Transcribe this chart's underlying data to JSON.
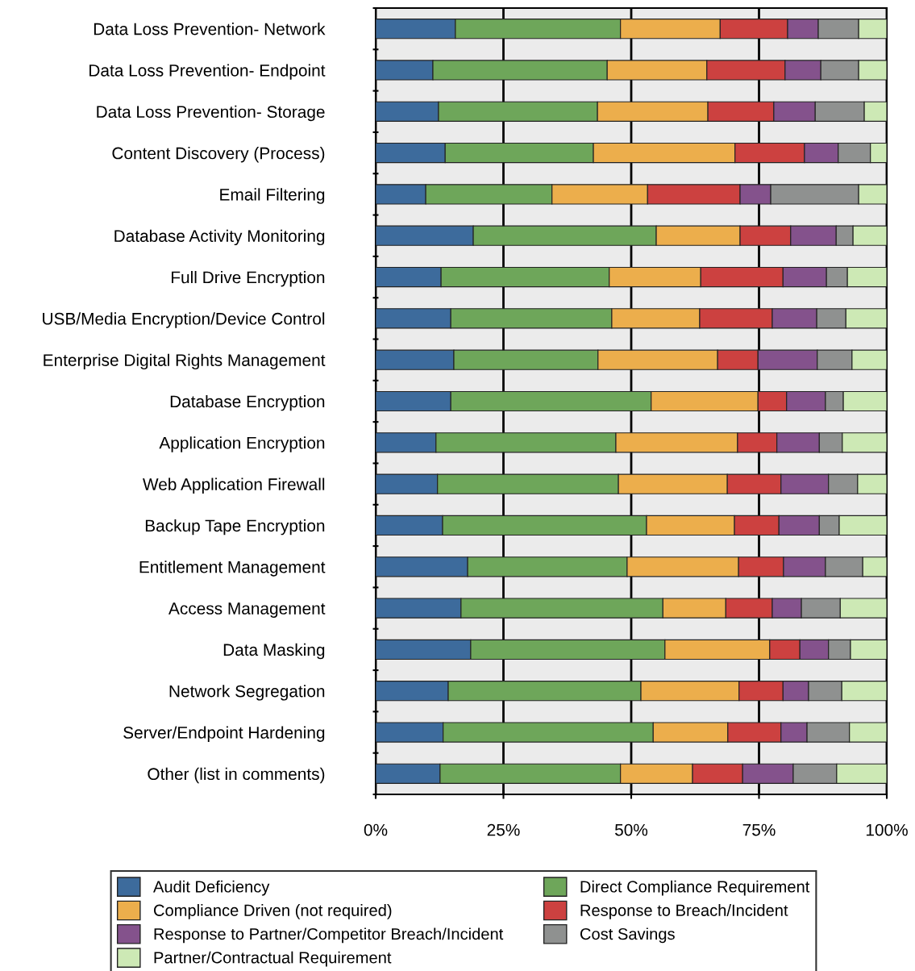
{
  "chart_data": {
    "type": "bar",
    "orientation": "horizontal",
    "stacked": true,
    "categories": [
      "Data Loss Prevention- Network",
      "Data Loss Prevention- Endpoint",
      "Data Loss Prevention- Storage",
      "Content Discovery (Process)",
      "Email Filtering",
      "Database Activity Monitoring",
      "Full Drive Encryption",
      "USB/Media Encryption/Device Control",
      "Enterprise Digital Rights Management",
      "Database Encryption",
      "Application Encryption",
      "Web Application Firewall",
      "Backup Tape Encryption",
      "Entitlement Management",
      "Access Management",
      "Data Masking",
      "Network Segregation",
      "Server/Endpoint Hardening",
      "Other (list in comments)"
    ],
    "series": [
      {
        "name": "Audit Deficiency",
        "color": "#3d6b9c",
        "values": [
          15.6,
          11.2,
          12.3,
          13.6,
          9.8,
          19.1,
          12.8,
          14.7,
          15.3,
          14.7,
          11.8,
          12.1,
          13.1,
          18.0,
          16.7,
          18.6,
          14.2,
          13.2,
          12.6
        ]
      },
      {
        "name": "Direct Compliance Requirement",
        "color": "#6ea65a",
        "values": [
          32.3,
          34.1,
          31.1,
          29.0,
          24.7,
          35.8,
          32.9,
          31.5,
          28.2,
          39.2,
          35.2,
          35.4,
          39.9,
          31.2,
          39.5,
          38.0,
          37.7,
          41.1,
          35.3
        ]
      },
      {
        "name": "Compliance Driven (not required)",
        "color": "#ecae4c",
        "values": [
          19.5,
          19.5,
          21.6,
          27.7,
          18.7,
          16.4,
          17.9,
          17.2,
          23.4,
          20.9,
          23.8,
          21.3,
          17.2,
          21.8,
          12.3,
          20.5,
          19.2,
          14.6,
          14.1
        ]
      },
      {
        "name": "Response to Breach/Incident",
        "color": "#cc4140",
        "values": [
          13.2,
          15.3,
          12.9,
          13.6,
          18.1,
          9.9,
          16.1,
          14.2,
          7.9,
          5.6,
          7.7,
          10.5,
          8.7,
          8.8,
          9.1,
          5.9,
          8.6,
          10.4,
          9.8
        ]
      },
      {
        "name": "Response to Partner/Competitor Breach/Incident",
        "color": "#84528c",
        "values": [
          6.0,
          7.0,
          8.1,
          6.6,
          6.0,
          8.9,
          8.5,
          8.7,
          11.6,
          7.6,
          8.3,
          9.3,
          7.9,
          8.2,
          5.7,
          5.6,
          5.0,
          5.1,
          9.9
        ]
      },
      {
        "name": "Cost Savings",
        "color": "#8f9190",
        "values": [
          7.9,
          7.4,
          9.6,
          6.3,
          17.2,
          3.3,
          4.1,
          5.7,
          6.8,
          3.5,
          4.5,
          5.7,
          3.9,
          7.3,
          7.6,
          4.3,
          6.5,
          8.3,
          8.5
        ]
      },
      {
        "name": "Partner/Contractual Requirement",
        "color": "#cde9b5",
        "values": [
          5.5,
          5.5,
          4.4,
          3.2,
          5.5,
          6.6,
          7.7,
          8.0,
          6.8,
          8.5,
          8.7,
          5.7,
          9.3,
          4.7,
          9.1,
          7.1,
          8.8,
          7.3,
          9.8
        ]
      }
    ],
    "xlim": [
      0,
      100
    ],
    "xticks": [
      {
        "value": 0,
        "label": "0%"
      },
      {
        "value": 25,
        "label": "25%"
      },
      {
        "value": 50,
        "label": "50%"
      },
      {
        "value": 75,
        "label": "75%"
      },
      {
        "value": 100,
        "label": "100%"
      }
    ],
    "grid": "x",
    "legend": "bottom"
  }
}
